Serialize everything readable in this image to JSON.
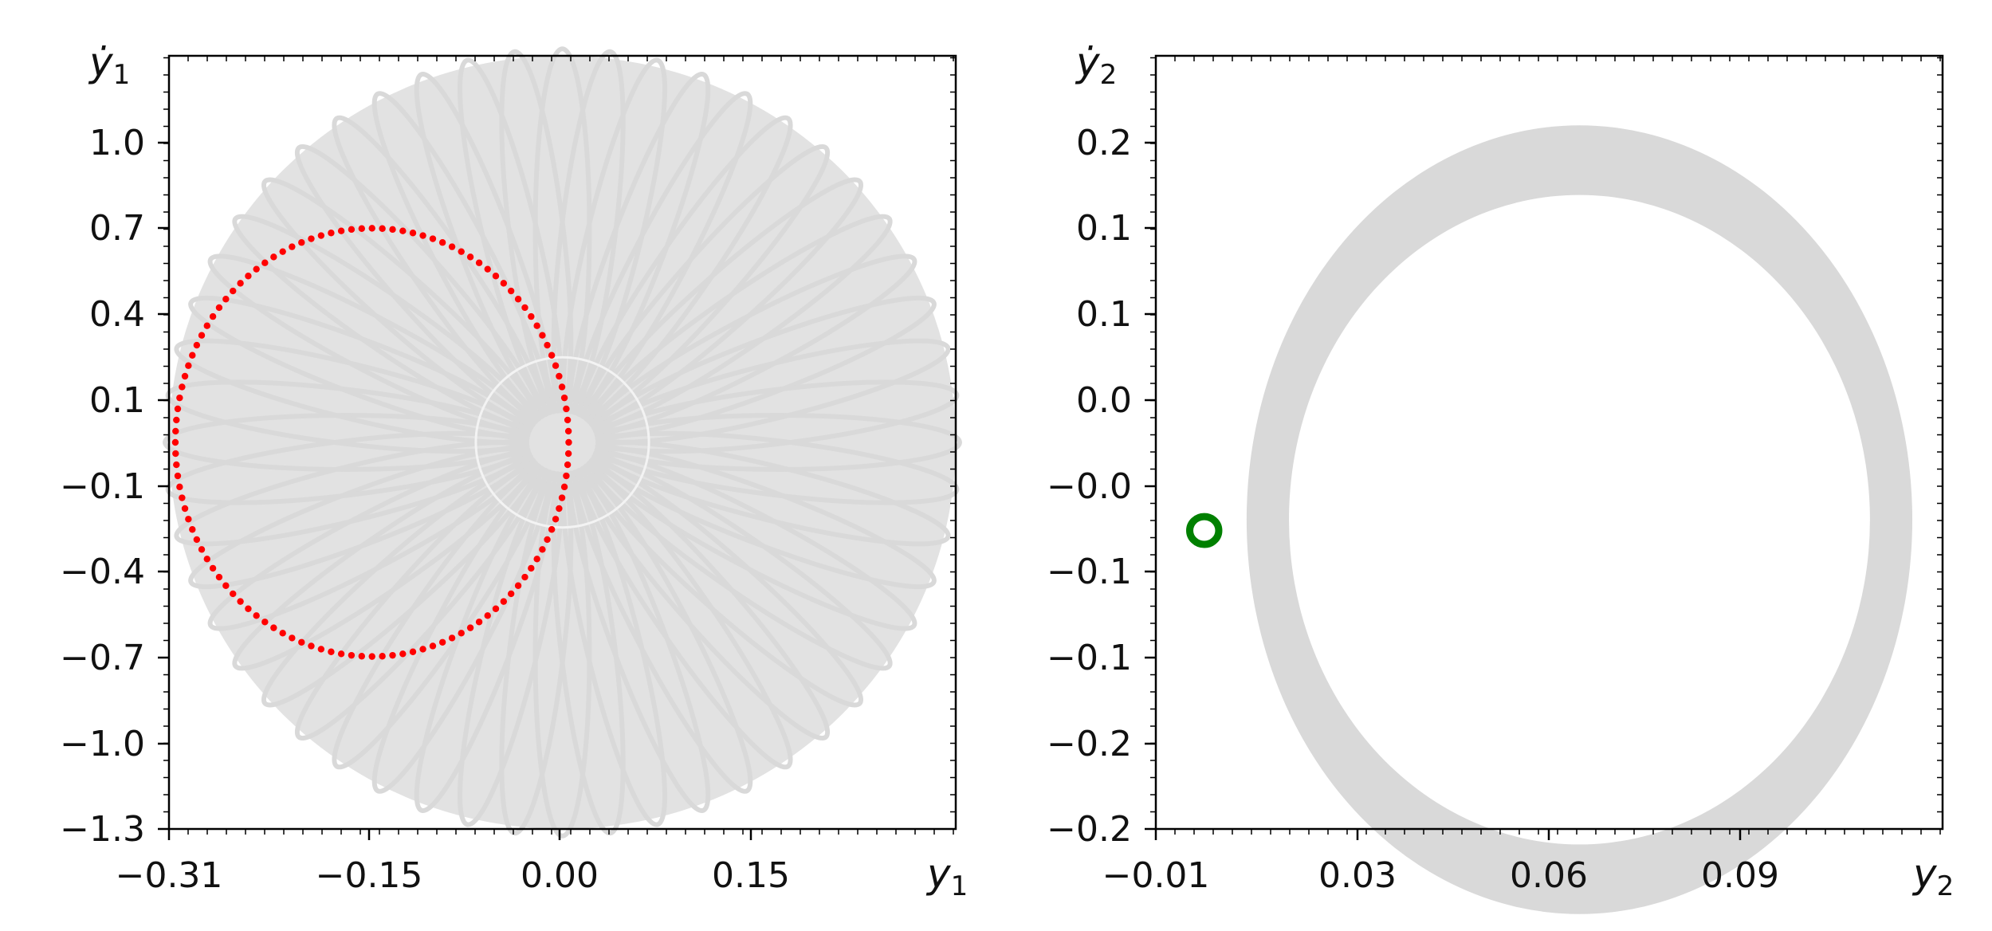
{
  "chart_data": [
    {
      "type": "scatter",
      "title": "",
      "xlabel": "y1",
      "ylabel": "ẏ1",
      "xlim": [
        -0.31,
        0.31
      ],
      "ylim": [
        -1.3,
        1.3
      ],
      "xticks": [
        "−0.31",
        "−0.15",
        "0.00",
        "0.15"
      ],
      "yticks": [
        "−1.3",
        "−1.0",
        "−0.7",
        "−0.4",
        "−0.1",
        "0.1",
        "0.4",
        "0.7",
        "1.0"
      ],
      "grid": false,
      "background_trajectory": {
        "color": "#d9d9d9",
        "center": [
          0.0,
          0.0
        ],
        "radius_x": 0.31,
        "radius_y": 1.3,
        "petals": 52
      },
      "series": [
        {
          "color": "#ff0000",
          "marker": "dot",
          "center": [
            -0.15,
            0.0
          ],
          "radius_x": 0.155,
          "radius_y": 0.72,
          "points": 120
        }
      ]
    },
    {
      "type": "scatter",
      "title": "",
      "xlabel": "y2",
      "ylabel": "ẏ2",
      "xlim": [
        -0.01,
        0.12
      ],
      "ylim": [
        -0.2,
        0.3
      ],
      "xticks": [
        "−0.01",
        "0.03",
        "0.06",
        "0.09"
      ],
      "yticks": [
        "−0.2",
        "−0.2",
        "−0.1",
        "−0.1",
        "−0.0",
        "0.0",
        "0.1",
        "0.1",
        "0.2"
      ],
      "grid": false,
      "background_trajectory": {
        "color": "#d9d9d9",
        "center": [
          0.06,
          0.0
        ],
        "outer_radius_x": 0.055,
        "outer_radius_y": 0.255,
        "inner_radius_x": 0.048,
        "inner_radius_y": 0.21
      },
      "series": [
        {
          "color": "#008000",
          "marker": "line",
          "center": [
            -0.002,
            -0.007
          ],
          "radius_x": 0.0024,
          "radius_y": 0.009
        }
      ]
    }
  ]
}
